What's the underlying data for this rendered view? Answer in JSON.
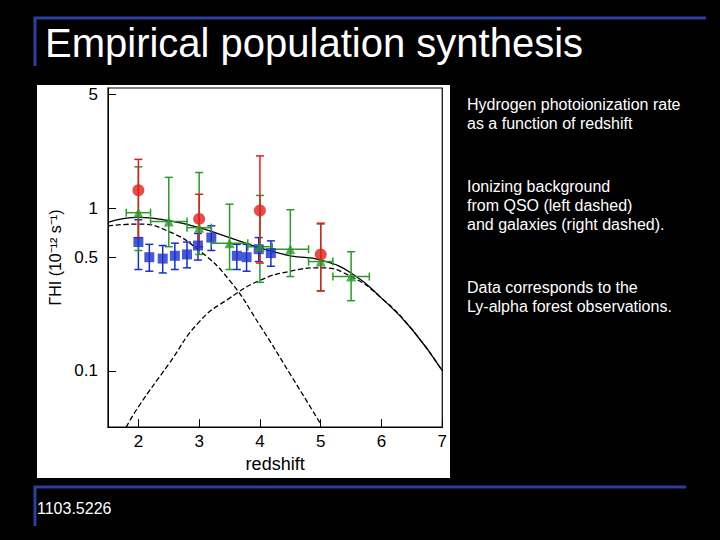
{
  "title": "Empirical population synthesis",
  "notes": [
    [
      "Hydrogen photoionization rate",
      "as a function of redshift"
    ],
    [
      "Ionizing background",
      "from QSO (left dashed)",
      "and galaxies (right dashed)."
    ],
    [
      "Data corresponds to the",
      "Ly-alpha forest observations."
    ]
  ],
  "reference": "1103.5226",
  "chart_data": {
    "type": "scatter",
    "xlabel": "redshift",
    "ylabel": "ΓHI (10⁻¹² s⁻¹)",
    "log": "y",
    "grid": false,
    "xlim": [
      1.5,
      7
    ],
    "xticks": [
      2,
      3,
      4,
      5,
      6,
      7
    ],
    "ylim": [
      0.045,
      5.5
    ],
    "yticks": [
      0.1,
      0.5,
      1,
      5
    ],
    "series": [
      {
        "type": "line",
        "line_style": "dashed",
        "color": "#000000",
        "x": [
          1.5,
          2,
          2.5,
          3,
          3.5,
          4,
          4.5,
          5
        ],
        "values": [
          0.78,
          0.8,
          0.72,
          0.55,
          0.36,
          0.19,
          0.095,
          0.047
        ]
      },
      {
        "type": "line",
        "line_style": "dashed",
        "color": "#000000",
        "x": [
          1.8,
          2,
          2.5,
          3,
          3.5,
          4,
          4.5,
          5,
          5.5,
          6,
          6.5,
          7
        ],
        "values": [
          0.045,
          0.06,
          0.11,
          0.2,
          0.28,
          0.36,
          0.41,
          0.43,
          0.38,
          0.28,
          0.18,
          0.1
        ]
      },
      {
        "type": "line",
        "line_style": "solid",
        "color": "#000000",
        "x": [
          1.5,
          2,
          2.5,
          3,
          3.5,
          4,
          4.5,
          5,
          5.5,
          6,
          6.5,
          7
        ],
        "values": [
          0.82,
          0.88,
          0.84,
          0.76,
          0.66,
          0.57,
          0.51,
          0.48,
          0.4,
          0.28,
          0.18,
          0.1
        ]
      },
      {
        "type": "scatter",
        "marker": "square",
        "color": "#1a2ecc",
        "x": [
          2.0,
          2.18,
          2.4,
          2.6,
          2.8,
          2.98,
          3.2,
          3.62,
          3.78,
          3.98,
          4.18
        ],
        "values": [
          0.62,
          0.5,
          0.49,
          0.51,
          0.52,
          0.59,
          0.66,
          0.51,
          0.5,
          0.56,
          0.53
        ],
        "y_low": [
          0.42,
          0.41,
          0.4,
          0.42,
          0.43,
          0.48,
          0.55,
          0.42,
          0.41,
          0.47,
          0.44
        ],
        "y_high": [
          0.85,
          0.6,
          0.59,
          0.61,
          0.62,
          0.7,
          0.78,
          0.6,
          0.6,
          0.66,
          0.63
        ]
      },
      {
        "type": "scatter",
        "marker": "triangle",
        "color": "#2a9a2a",
        "x": [
          2.0,
          2.5,
          3.0,
          3.5,
          4.0,
          4.5,
          5.0,
          5.5
        ],
        "values": [
          0.94,
          0.83,
          0.76,
          0.61,
          0.58,
          0.56,
          0.47,
          0.38
        ],
        "y_low": [
          0.55,
          0.58,
          0.52,
          0.42,
          0.35,
          0.38,
          0.31,
          0.27
        ],
        "y_high": [
          1.8,
          1.55,
          1.66,
          1.06,
          1.2,
          0.98,
          0.8,
          0.54
        ],
        "x_low": [
          1.8,
          2.2,
          2.8,
          3.2,
          3.8,
          4.2,
          4.8,
          5.2
        ],
        "x_high": [
          2.2,
          2.8,
          3.2,
          3.8,
          4.2,
          4.8,
          5.2,
          5.8
        ]
      },
      {
        "type": "scatter",
        "marker": "circle",
        "color": "#e0201c",
        "x": [
          2.0,
          3.0,
          4.0,
          5.0
        ],
        "values": [
          1.29,
          0.86,
          0.97,
          0.52
        ],
        "y_low": [
          0.66,
          0.58,
          0.46,
          0.31
        ],
        "y_high": [
          2.0,
          1.22,
          2.1,
          0.81
        ]
      }
    ]
  }
}
